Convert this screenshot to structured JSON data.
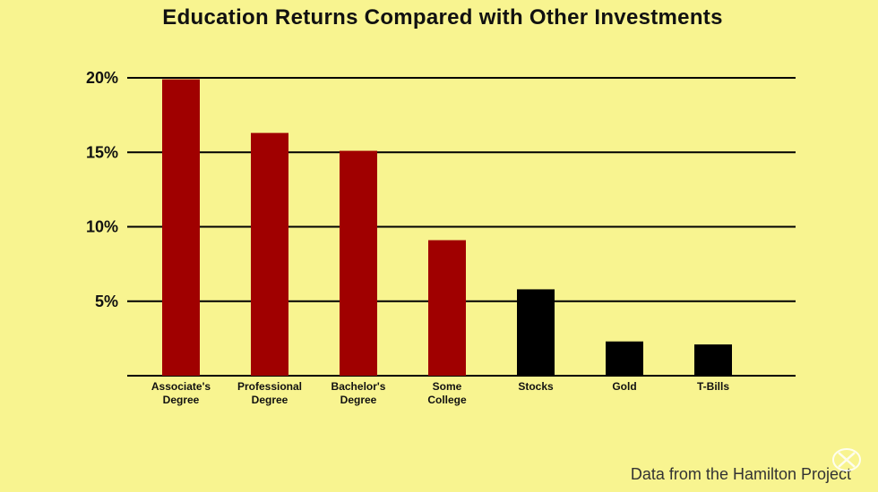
{
  "chart_data": {
    "type": "bar",
    "title": "Education Returns Compared with Other Investments",
    "xlabel": "",
    "ylabel": "",
    "categories": [
      [
        "Associate's",
        "Degree"
      ],
      [
        "Professional",
        "Degree"
      ],
      [
        "Bachelor's",
        "Degree"
      ],
      [
        "Some",
        "College"
      ],
      [
        "Stocks"
      ],
      [
        "Gold"
      ],
      [
        "T-Bills"
      ]
    ],
    "values": [
      19.9,
      16.3,
      15.1,
      9.1,
      5.8,
      2.3,
      2.1
    ],
    "groups": [
      "education",
      "education",
      "education",
      "education",
      "investment",
      "investment",
      "investment"
    ],
    "ylim": [
      0,
      20
    ],
    "yticks": [
      5,
      10,
      15,
      20
    ],
    "ytick_labels": [
      "5%",
      "10%",
      "15%",
      "20%"
    ],
    "grid": true,
    "legend": "none",
    "colors": {
      "education": "#a00000",
      "investment": "#000000",
      "background": "#f8f490",
      "gridline": "#000000"
    }
  },
  "footer": {
    "source_note": "Data from the Hamilton Project"
  },
  "watermark": {
    "icon": "tiktok-crossed-logo-icon"
  }
}
